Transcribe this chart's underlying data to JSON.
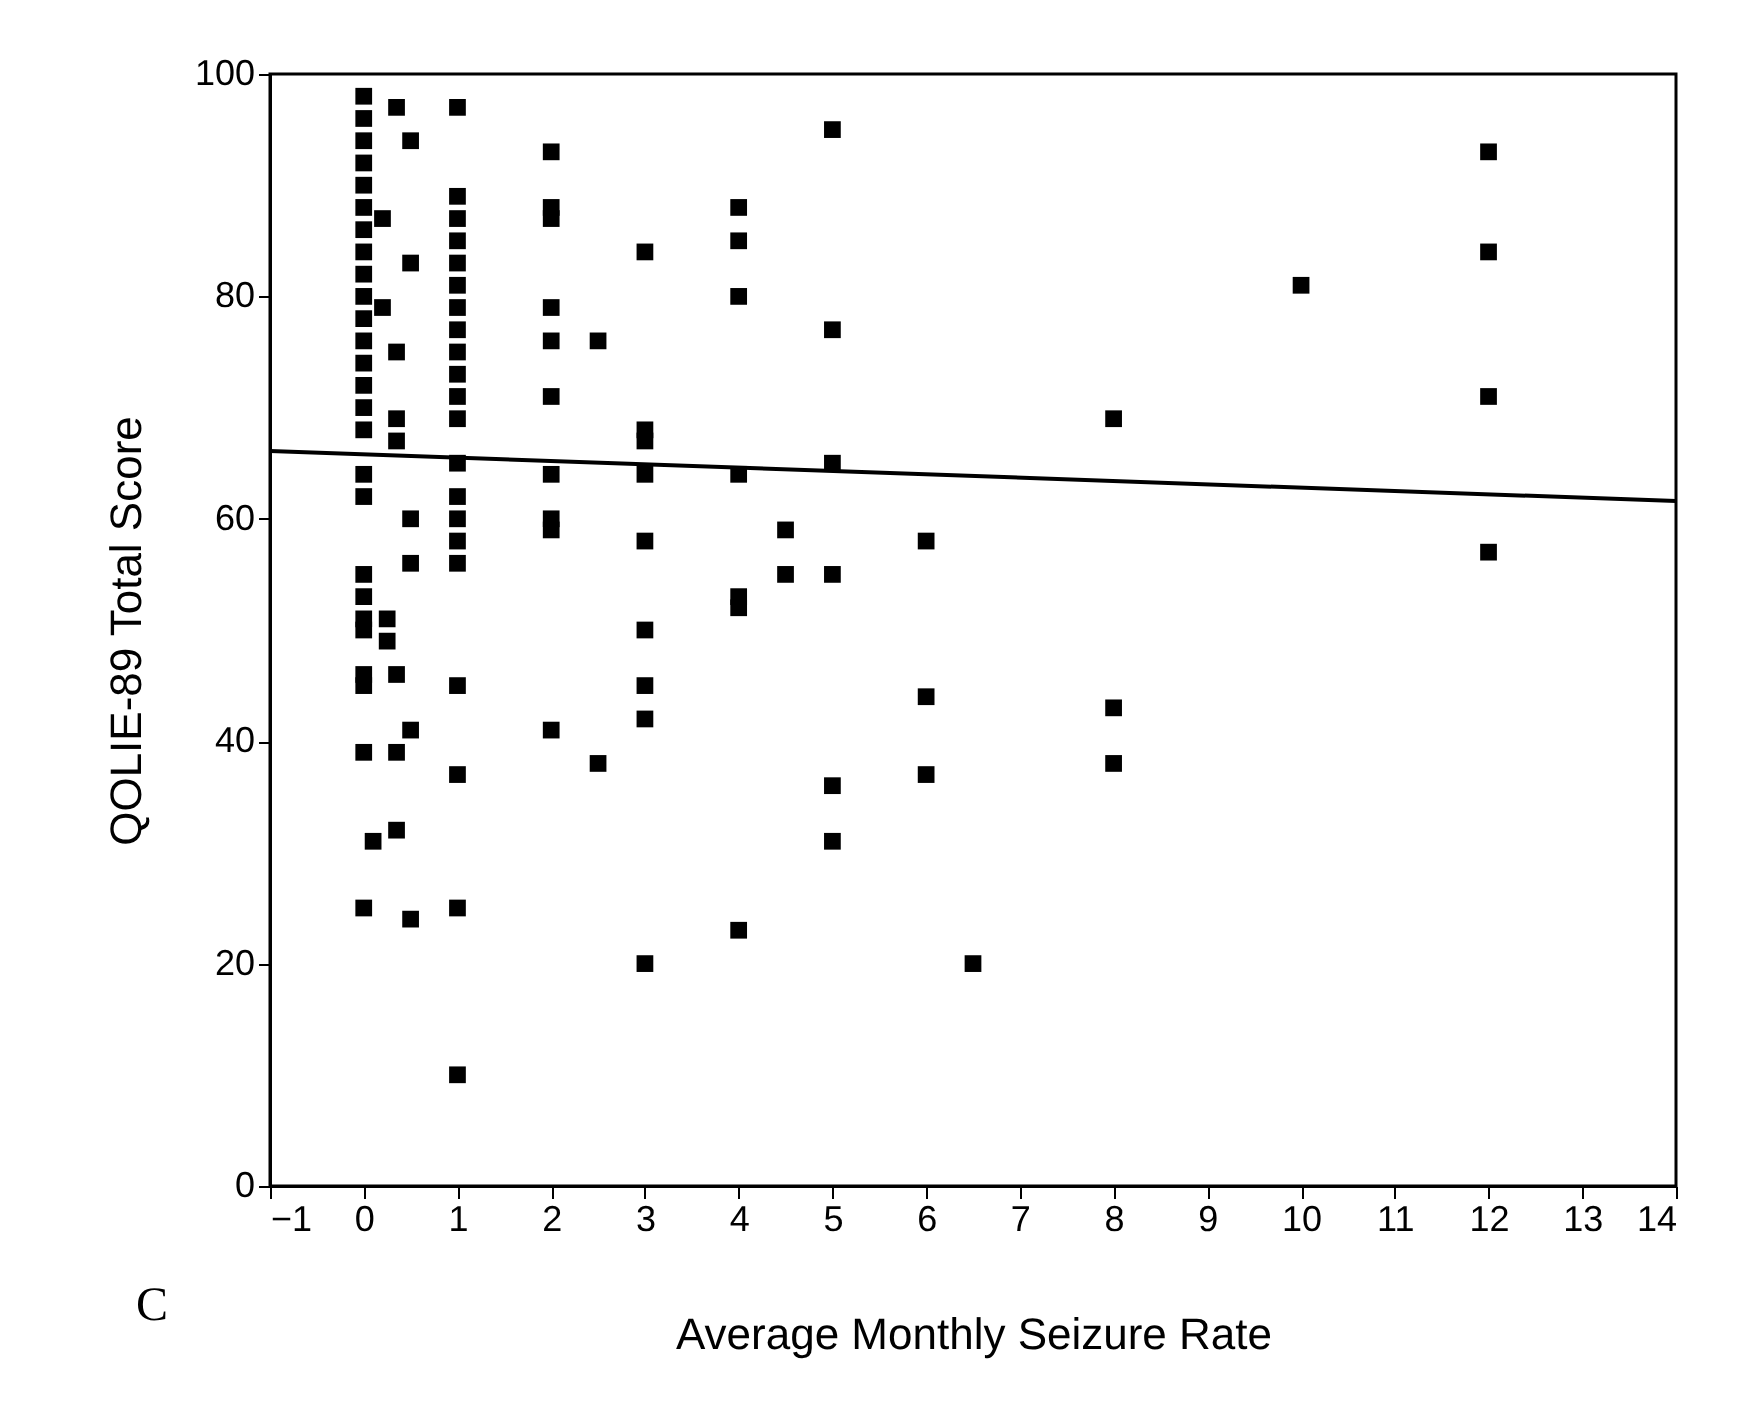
{
  "chart_data": {
    "type": "scatter",
    "xlabel": "Average Monthly Seizure Rate",
    "ylabel": "QOLIE-89 Total Score",
    "annotations": [
      "C"
    ],
    "xlim": [
      -1,
      14
    ],
    "ylim": [
      0,
      100
    ],
    "xticks": [
      -1,
      0,
      1,
      2,
      3,
      4,
      5,
      6,
      7,
      8,
      9,
      10,
      11,
      12,
      13,
      14
    ],
    "yticks": [
      0,
      20,
      40,
      60,
      80,
      100
    ],
    "series": [
      {
        "marker": "square",
        "color": "#000000",
        "x": [
          0,
          0,
          0,
          0,
          0,
          0,
          0,
          0,
          0,
          0,
          0,
          0,
          0,
          0,
          0,
          0,
          0,
          0,
          0,
          0,
          0,
          0,
          0,
          0,
          0,
          0,
          0.1,
          0.2,
          0.2,
          0.25,
          0.25,
          0.35,
          0.35,
          0.35,
          0.35,
          0.35,
          0.35,
          0.35,
          0.5,
          0.5,
          0.5,
          0.5,
          0.5,
          0.5,
          1,
          1,
          1,
          1,
          1,
          1,
          1,
          1,
          1,
          1,
          1,
          1,
          1,
          1,
          1,
          1,
          1,
          1,
          1,
          1,
          1,
          2,
          2,
          2,
          2,
          2,
          2,
          2,
          2,
          2,
          2,
          2.5,
          2.5,
          3,
          3,
          3,
          3,
          3,
          3,
          3,
          3,
          3,
          4,
          4,
          4,
          4,
          4,
          4,
          4,
          4.5,
          4.5,
          5,
          5,
          5,
          5,
          5,
          5,
          6,
          6,
          6,
          6.5,
          8,
          8,
          8,
          10,
          12,
          12,
          12,
          12
        ],
        "values": [
          98,
          96,
          94,
          92,
          90,
          88,
          86,
          84,
          82,
          80,
          78,
          76,
          74,
          72,
          70,
          68,
          64,
          62,
          55,
          53,
          51,
          50,
          46,
          45,
          39,
          25,
          31,
          87,
          79,
          51,
          49,
          97,
          75,
          69,
          67,
          46,
          39,
          32,
          94,
          83,
          60,
          56,
          41,
          24,
          97,
          89,
          87,
          85,
          83,
          81,
          79,
          77,
          75,
          73,
          71,
          69,
          65,
          62,
          60,
          58,
          56,
          45,
          37,
          25,
          10,
          93,
          88,
          87,
          79,
          76,
          71,
          64,
          60,
          59,
          41,
          76,
          38,
          84,
          68,
          67,
          64,
          58,
          50,
          45,
          42,
          20,
          88,
          85,
          80,
          64,
          53,
          52,
          23,
          59,
          55,
          95,
          77,
          65,
          55,
          36,
          31,
          58,
          44,
          37,
          20,
          69,
          43,
          38,
          81,
          93,
          84,
          71,
          57
        ]
      },
      {
        "type": "line",
        "color": "#000000",
        "x": [
          -1,
          14
        ],
        "values": [
          66.1,
          61.6
        ]
      }
    ]
  }
}
